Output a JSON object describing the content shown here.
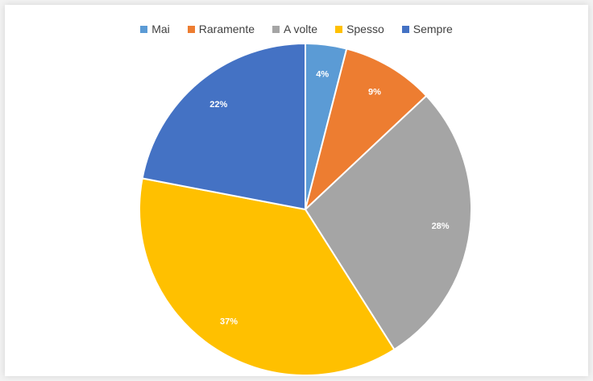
{
  "chart_data": {
    "type": "pie",
    "categories": [
      "Mai",
      "Raramente",
      "A volte",
      "Spesso",
      "Sempre"
    ],
    "values": [
      4,
      9,
      28,
      37,
      22
    ],
    "labels": [
      "4%",
      "9%",
      "28%",
      "37%",
      "22%"
    ],
    "colors": [
      "#5b9bd5",
      "#ed7d31",
      "#a5a5a5",
      "#ffc000",
      "#4472c4"
    ],
    "legend_position": "top",
    "start_angle_deg": 0,
    "direction": "clockwise"
  }
}
